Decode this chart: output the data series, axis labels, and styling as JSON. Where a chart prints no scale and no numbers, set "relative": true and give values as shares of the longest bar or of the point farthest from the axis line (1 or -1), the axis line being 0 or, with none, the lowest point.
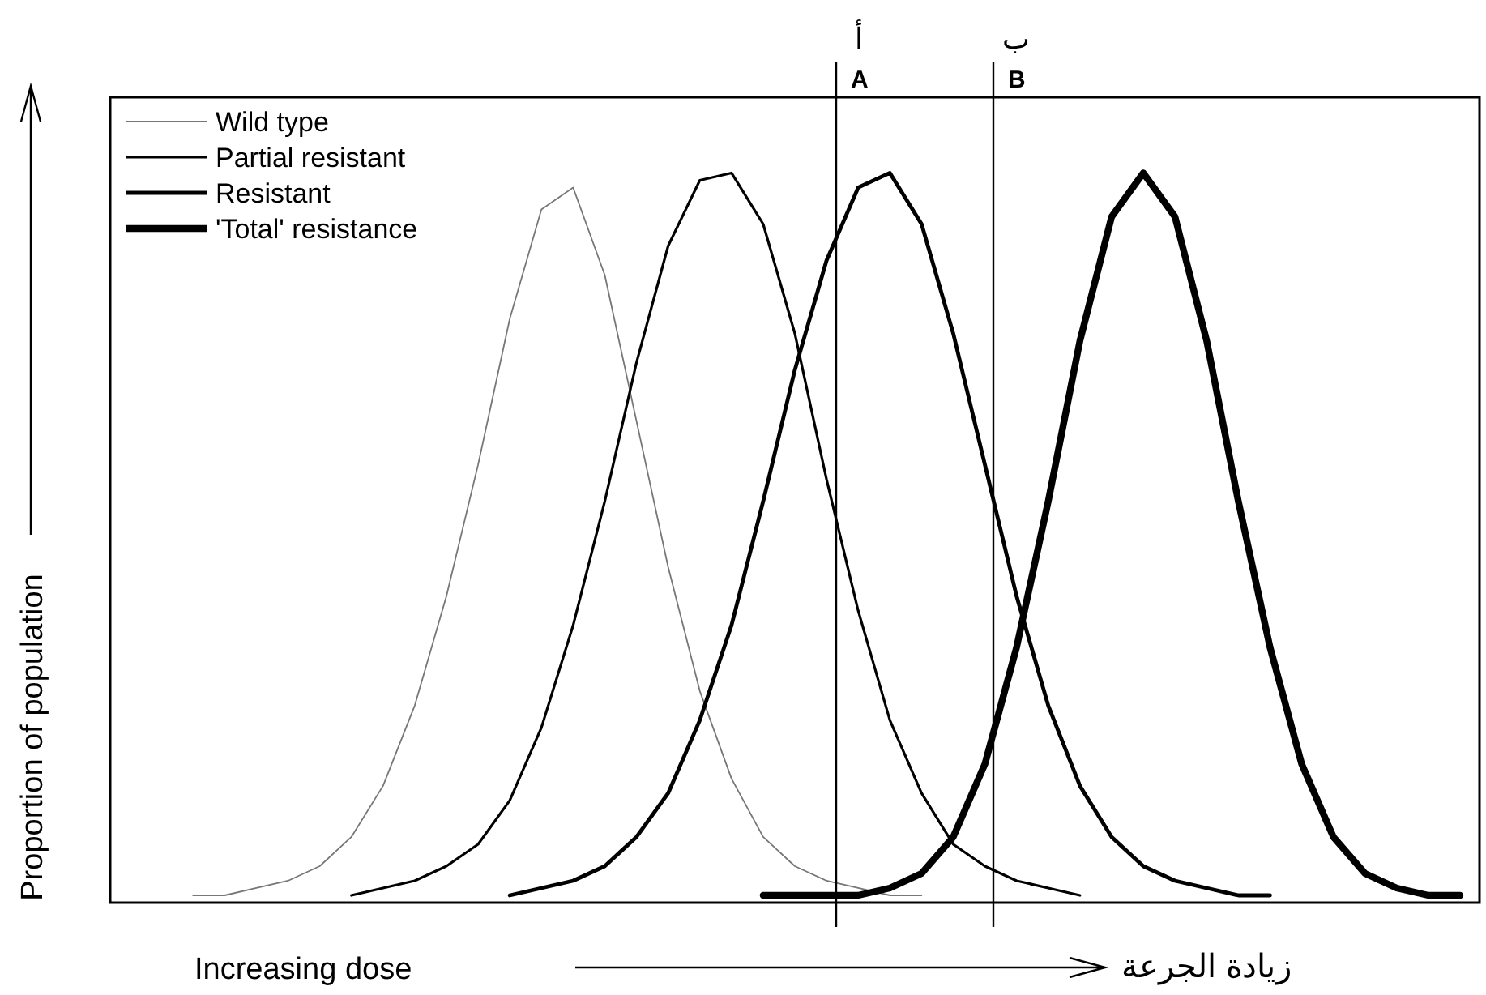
{
  "chart_data": {
    "type": "line",
    "relative": true,
    "xlabel": "Increasing dose",
    "ylabel": "Proportion of population",
    "categories": [
      null,
      null,
      null,
      null,
      null,
      null,
      null,
      null,
      null,
      null,
      null,
      null,
      null,
      null,
      null,
      null,
      null,
      null,
      null,
      null,
      null,
      null,
      null,
      null,
      null,
      null,
      null,
      null,
      null,
      null,
      null,
      null,
      null,
      null,
      null,
      null,
      null,
      null,
      null,
      null,
      null,
      null,
      null
    ],
    "series": [
      {
        "name": "Wild type",
        "color": "#777777",
        "values": [
          null,
          null,
          0.01,
          0.01,
          0.02,
          0.03,
          0.05,
          0.09,
          0.16,
          0.27,
          0.42,
          0.6,
          0.8,
          0.95,
          0.98,
          0.86,
          0.66,
          0.46,
          0.29,
          0.17,
          0.09,
          0.05,
          0.03,
          0.02,
          0.01,
          0.01,
          null,
          null,
          null,
          null,
          null,
          null,
          null,
          null,
          null,
          null,
          null,
          null,
          null,
          null,
          null,
          null,
          null
        ]
      },
      {
        "name": "Partial resistant",
        "color": "#000000",
        "values": [
          null,
          null,
          null,
          null,
          null,
          null,
          null,
          0.01,
          0.02,
          0.03,
          0.05,
          0.08,
          0.14,
          0.24,
          0.38,
          0.55,
          0.74,
          0.9,
          0.99,
          1.0,
          0.93,
          0.78,
          0.58,
          0.4,
          0.25,
          0.15,
          0.08,
          0.05,
          0.03,
          0.02,
          0.01,
          null,
          null,
          null,
          null,
          null,
          null,
          null,
          null,
          null,
          null,
          null,
          null
        ]
      },
      {
        "name": "Resistant",
        "color": "#000000",
        "values": [
          null,
          null,
          null,
          null,
          null,
          null,
          null,
          null,
          null,
          null,
          null,
          null,
          0.01,
          0.02,
          0.03,
          0.05,
          0.09,
          0.15,
          0.25,
          0.38,
          0.55,
          0.73,
          0.88,
          0.98,
          1.0,
          0.93,
          0.78,
          0.6,
          0.42,
          0.27,
          0.16,
          0.09,
          0.05,
          0.03,
          0.02,
          0.01,
          0.01,
          null,
          null,
          null,
          null,
          null,
          null
        ]
      },
      {
        "name": "'Total' resistance",
        "color": "#000000",
        "values": [
          null,
          null,
          null,
          null,
          null,
          null,
          null,
          null,
          null,
          null,
          null,
          null,
          null,
          null,
          null,
          null,
          null,
          null,
          null,
          null,
          0.01,
          0.01,
          0.01,
          0.01,
          0.02,
          0.04,
          0.09,
          0.19,
          0.35,
          0.55,
          0.77,
          0.94,
          1.0,
          0.94,
          0.77,
          0.55,
          0.35,
          0.19,
          0.09,
          0.04,
          0.02,
          0.01,
          0.01
        ]
      }
    ],
    "annotations": [
      "A",
      "أ",
      "B",
      "ب",
      "زيادة الجرعة"
    ],
    "legend": "top left",
    "marker": "none",
    "line_style": "solid"
  }
}
